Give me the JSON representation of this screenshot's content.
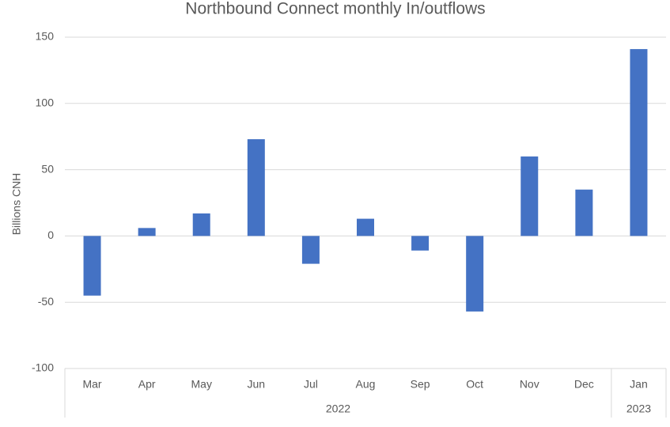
{
  "chart_data": {
    "type": "bar",
    "title": "Northbound Connect monthly In/outflows",
    "y_label": "Billions CNH",
    "groups": [
      {
        "label": "2022",
        "categories": [
          "Mar",
          "Apr",
          "May",
          "Jun",
          "Jul",
          "Aug",
          "Sep",
          "Oct",
          "Nov",
          "Dec"
        ],
        "values": [
          -45,
          6,
          17,
          73,
          -21,
          13,
          -11,
          -57,
          60,
          35
        ]
      },
      {
        "label": "2023",
        "categories": [
          "Jan"
        ],
        "values": [
          141
        ]
      }
    ],
    "color": "#4472c4",
    "ylim": [
      -100,
      150
    ],
    "yticks": [
      -100,
      -50,
      0,
      50,
      100,
      150
    ],
    "grid": true
  }
}
